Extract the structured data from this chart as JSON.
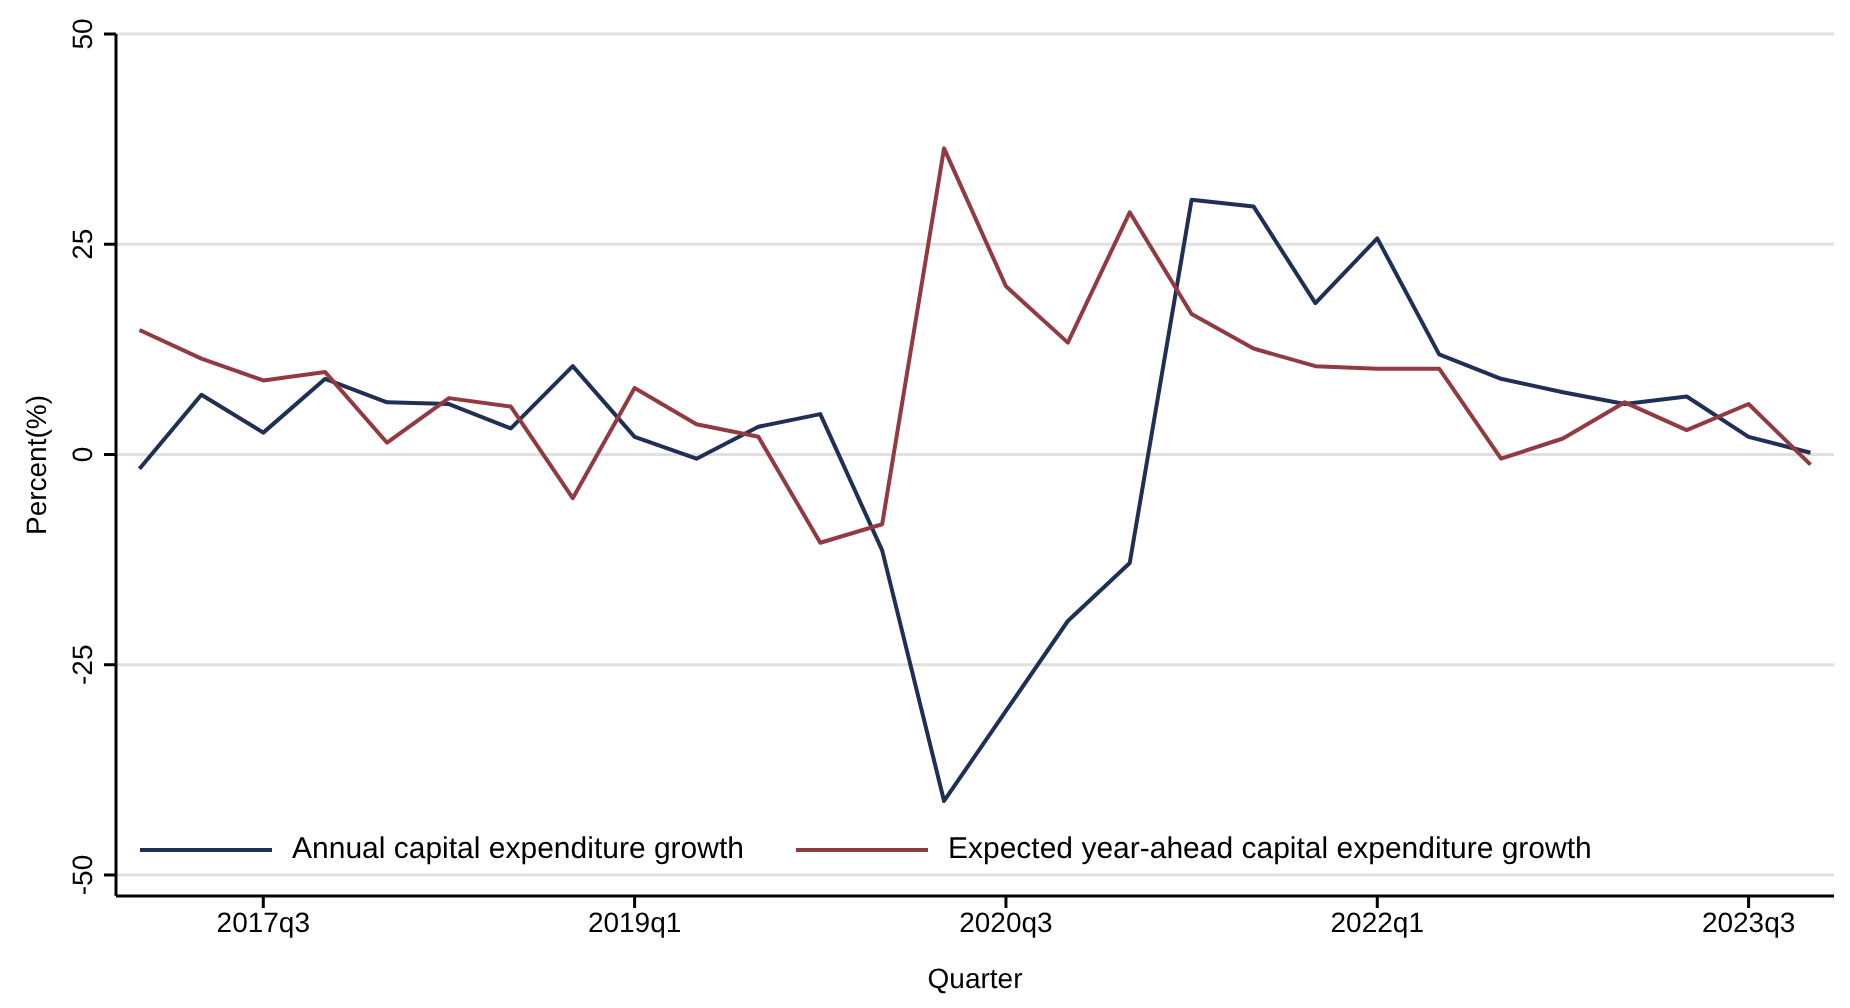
{
  "chart_data": {
    "type": "line",
    "xlabel": "Quarter",
    "ylabel": "Percent(%)",
    "categories": [
      null,
      null,
      "2017q3",
      null,
      null,
      null,
      null,
      null,
      "2019q1",
      null,
      null,
      null,
      null,
      null,
      "2020q3",
      null,
      null,
      null,
      null,
      null,
      "2022q1",
      null,
      null,
      null,
      null,
      null,
      "2023q3",
      null
    ],
    "series": [
      {
        "name": "Annual capital expenditure growth",
        "color": "#1f2f55",
        "values": [
          -1.7,
          7.1,
          2.6,
          9,
          6.2,
          6,
          3.1,
          10.5,
          2.1,
          -0.5,
          3.3,
          4.8,
          -11.4,
          -41.2,
          -30.5,
          -19.8,
          -12.9,
          30.3,
          29.5,
          18,
          25.7,
          11.9,
          9,
          7.4,
          6,
          6.9,
          2.1,
          0.2
        ]
      },
      {
        "name": "Expected year-ahead capital expenditure growth",
        "color": "#923a42",
        "values": [
          14.8,
          11.4,
          8.8,
          9.8,
          1.4,
          6.7,
          5.7,
          -5.2,
          7.9,
          3.6,
          2.1,
          -10.5,
          -8.3,
          36.4,
          20,
          13.3,
          28.8,
          16.7,
          12.6,
          10.5,
          10.2,
          10.2,
          -0.5,
          1.9,
          6.2,
          2.9,
          6,
          -1.2
        ]
      }
    ],
    "ylim": [
      -52.5,
      50
    ],
    "yticks": [
      -50,
      -25,
      0,
      25,
      50
    ],
    "grid": "y",
    "legend": "bottom",
    "marker": "none",
    "line_style": "solid"
  }
}
